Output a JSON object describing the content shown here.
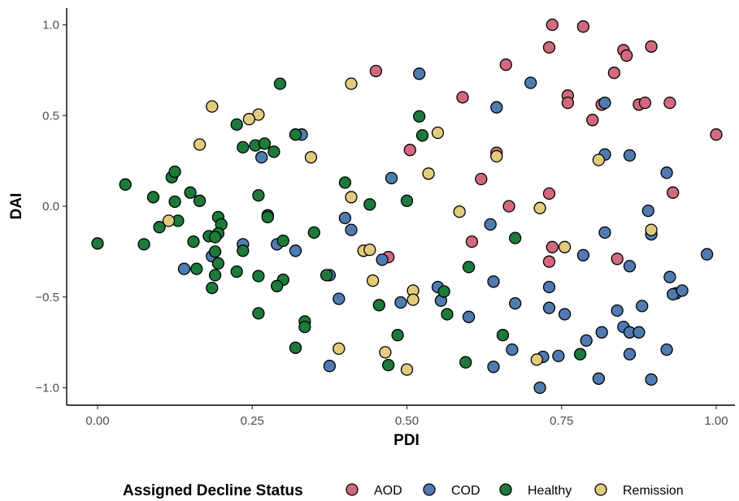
{
  "chart_data": {
    "type": "scatter",
    "title": "",
    "xlabel": "PDI",
    "ylabel": "DAI",
    "xlim": [
      -0.05,
      1.05
    ],
    "ylim": [
      -1.1,
      1.1
    ],
    "x_ticks": [
      0,
      0.25,
      0.5,
      0.75,
      1
    ],
    "x_tick_labels": [
      "0.00",
      "0.25",
      "0.50",
      "0.75",
      "1.00"
    ],
    "y_ticks": [
      -1,
      -0.5,
      0,
      0.5,
      1
    ],
    "y_tick_labels": [
      "−1.0",
      "−0.5",
      "0.0",
      "0.5",
      "1.0"
    ],
    "grid": false,
    "legend": {
      "title": "Assigned Decline Status",
      "position": "bottom",
      "entries": [
        "AOD",
        "COD",
        "Healthy",
        "Remission"
      ]
    },
    "series": [
      {
        "name": "AOD",
        "color": "#d2697c",
        "points": [
          [
            0.735,
            1.0
          ],
          [
            0.785,
            0.99
          ],
          [
            0.73,
            0.875
          ],
          [
            0.85,
            0.86
          ],
          [
            0.895,
            0.88
          ],
          [
            0.855,
            0.83
          ],
          [
            0.66,
            0.78
          ],
          [
            0.835,
            0.735
          ],
          [
            0.45,
            0.745
          ],
          [
            0.59,
            0.6
          ],
          [
            0.76,
            0.61
          ],
          [
            0.76,
            0.57
          ],
          [
            0.815,
            0.56
          ],
          [
            0.875,
            0.56
          ],
          [
            0.885,
            0.57
          ],
          [
            0.925,
            0.57
          ],
          [
            0.8,
            0.475
          ],
          [
            1.0,
            0.395
          ],
          [
            0.505,
            0.31
          ],
          [
            0.645,
            0.295
          ],
          [
            0.62,
            0.15
          ],
          [
            0.73,
            0.07
          ],
          [
            0.93,
            0.075
          ],
          [
            0.665,
            0.0
          ],
          [
            0.605,
            -0.195
          ],
          [
            0.735,
            -0.225
          ],
          [
            0.47,
            -0.28
          ],
          [
            0.73,
            -0.305
          ],
          [
            0.84,
            -0.29
          ]
        ]
      },
      {
        "name": "COD",
        "color": "#4f7bb1",
        "points": [
          [
            0.52,
            0.73
          ],
          [
            0.7,
            0.68
          ],
          [
            0.645,
            0.545
          ],
          [
            0.82,
            0.57
          ],
          [
            0.33,
            0.395
          ],
          [
            0.265,
            0.27
          ],
          [
            0.82,
            0.285
          ],
          [
            0.86,
            0.28
          ],
          [
            0.475,
            0.155
          ],
          [
            0.92,
            0.185
          ],
          [
            0.89,
            -0.025
          ],
          [
            0.4,
            -0.065
          ],
          [
            0.635,
            -0.1
          ],
          [
            0.41,
            -0.13
          ],
          [
            0.82,
            -0.145
          ],
          [
            0.895,
            -0.155
          ],
          [
            0.235,
            -0.21
          ],
          [
            0.29,
            -0.21
          ],
          [
            0.32,
            -0.245
          ],
          [
            0.185,
            -0.275
          ],
          [
            0.46,
            -0.295
          ],
          [
            0.985,
            -0.265
          ],
          [
            0.785,
            -0.27
          ],
          [
            0.14,
            -0.345
          ],
          [
            0.86,
            -0.33
          ],
          [
            0.375,
            -0.38
          ],
          [
            0.64,
            -0.415
          ],
          [
            0.925,
            -0.39
          ],
          [
            0.73,
            -0.445
          ],
          [
            0.55,
            -0.445
          ],
          [
            0.935,
            -0.48
          ],
          [
            0.93,
            -0.485
          ],
          [
            0.945,
            -0.465
          ],
          [
            0.39,
            -0.51
          ],
          [
            0.49,
            -0.53
          ],
          [
            0.555,
            -0.52
          ],
          [
            0.675,
            -0.535
          ],
          [
            0.73,
            -0.56
          ],
          [
            0.755,
            -0.595
          ],
          [
            0.88,
            -0.55
          ],
          [
            0.84,
            -0.575
          ],
          [
            0.6,
            -0.61
          ],
          [
            0.85,
            -0.665
          ],
          [
            0.86,
            -0.695
          ],
          [
            0.875,
            -0.695
          ],
          [
            0.815,
            -0.695
          ],
          [
            0.79,
            -0.74
          ],
          [
            0.92,
            -0.79
          ],
          [
            0.67,
            -0.79
          ],
          [
            0.72,
            -0.83
          ],
          [
            0.745,
            -0.825
          ],
          [
            0.86,
            -0.815
          ],
          [
            0.375,
            -0.88
          ],
          [
            0.64,
            -0.885
          ],
          [
            0.81,
            -0.95
          ],
          [
            0.895,
            -0.955
          ],
          [
            0.715,
            -1.0
          ]
        ]
      },
      {
        "name": "Healthy",
        "color": "#1c7a3b",
        "points": [
          [
            0.295,
            0.675
          ],
          [
            0.52,
            0.495
          ],
          [
            0.225,
            0.45
          ],
          [
            0.525,
            0.39
          ],
          [
            0.32,
            0.395
          ],
          [
            0.235,
            0.325
          ],
          [
            0.255,
            0.335
          ],
          [
            0.27,
            0.345
          ],
          [
            0.285,
            0.3
          ],
          [
            0.12,
            0.16
          ],
          [
            0.125,
            0.19
          ],
          [
            0.045,
            0.12
          ],
          [
            0.4,
            0.13
          ],
          [
            0.15,
            0.075
          ],
          [
            0.26,
            0.06
          ],
          [
            0.09,
            0.05
          ],
          [
            0.125,
            0.025
          ],
          [
            0.165,
            0.03
          ],
          [
            0.5,
            0.03
          ],
          [
            0.44,
            0.01
          ],
          [
            0.275,
            -0.05
          ],
          [
            0.275,
            -0.06
          ],
          [
            0.195,
            -0.06
          ],
          [
            0.1,
            -0.115
          ],
          [
            0.13,
            -0.08
          ],
          [
            0.2,
            -0.1
          ],
          [
            0.195,
            -0.15
          ],
          [
            0.18,
            -0.165
          ],
          [
            0.19,
            -0.17
          ],
          [
            0.35,
            -0.145
          ],
          [
            0.0,
            -0.205
          ],
          [
            0.075,
            -0.21
          ],
          [
            0.155,
            -0.195
          ],
          [
            0.675,
            -0.175
          ],
          [
            0.3,
            -0.19
          ],
          [
            0.19,
            -0.25
          ],
          [
            0.235,
            -0.245
          ],
          [
            0.195,
            -0.315
          ],
          [
            0.16,
            -0.345
          ],
          [
            0.6,
            -0.335
          ],
          [
            0.225,
            -0.36
          ],
          [
            0.26,
            -0.385
          ],
          [
            0.3,
            -0.405
          ],
          [
            0.37,
            -0.38
          ],
          [
            0.29,
            -0.44
          ],
          [
            0.19,
            -0.38
          ],
          [
            0.185,
            -0.45
          ],
          [
            0.56,
            -0.47
          ],
          [
            0.455,
            -0.545
          ],
          [
            0.26,
            -0.59
          ],
          [
            0.565,
            -0.595
          ],
          [
            0.335,
            -0.635
          ],
          [
            0.335,
            -0.665
          ],
          [
            0.655,
            -0.71
          ],
          [
            0.485,
            -0.71
          ],
          [
            0.32,
            -0.78
          ],
          [
            0.78,
            -0.815
          ],
          [
            0.595,
            -0.86
          ],
          [
            0.47,
            -0.875
          ]
        ]
      },
      {
        "name": "Remission",
        "color": "#e1cb7d",
        "points": [
          [
            0.41,
            0.675
          ],
          [
            0.185,
            0.55
          ],
          [
            0.26,
            0.505
          ],
          [
            0.245,
            0.48
          ],
          [
            0.55,
            0.405
          ],
          [
            0.165,
            0.34
          ],
          [
            0.345,
            0.27
          ],
          [
            0.645,
            0.275
          ],
          [
            0.535,
            0.18
          ],
          [
            0.81,
            0.255
          ],
          [
            0.41,
            0.05
          ],
          [
            0.715,
            -0.01
          ],
          [
            0.585,
            -0.03
          ],
          [
            0.115,
            -0.08
          ],
          [
            0.895,
            -0.13
          ],
          [
            0.755,
            -0.225
          ],
          [
            0.43,
            -0.245
          ],
          [
            0.44,
            -0.24
          ],
          [
            0.445,
            -0.41
          ],
          [
            0.51,
            -0.465
          ],
          [
            0.51,
            -0.515
          ],
          [
            0.39,
            -0.785
          ],
          [
            0.465,
            -0.805
          ],
          [
            0.71,
            -0.845
          ],
          [
            0.5,
            -0.9
          ]
        ]
      }
    ]
  }
}
